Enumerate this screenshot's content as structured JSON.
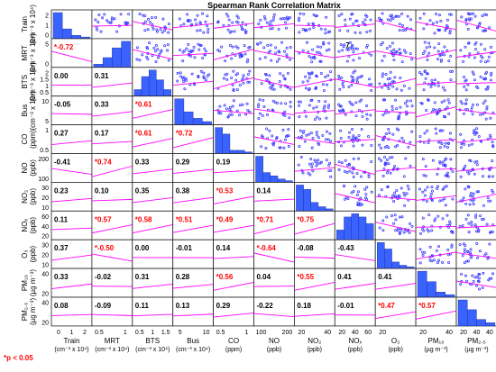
{
  "chart_data": {
    "type": "scatter-matrix",
    "title": "Spearman Rank Correlation Matrix",
    "variables": [
      {
        "name": "Train",
        "unit": "(cm⁻³ x 10⁴)"
      },
      {
        "name": "MRT",
        "unit": "(cm⁻³ x 10⁴)"
      },
      {
        "name": "BTS",
        "unit": "(cm⁻³ x 10⁴)"
      },
      {
        "name": "Bus",
        "unit": "(cm⁻³ x 10⁴)"
      },
      {
        "name": "CO",
        "unit": "(ppm)"
      },
      {
        "name": "NO",
        "unit": "(ppb)"
      },
      {
        "name": "NO₂",
        "unit": "(ppb)"
      },
      {
        "name": "NOₓ",
        "unit": "(ppb)"
      },
      {
        "name": "O₃",
        "unit": "(ppb)"
      },
      {
        "name": "PM₁₀",
        "unit": "(µg m⁻³)"
      },
      {
        "name": "PM₂.₅",
        "unit": "(µg m⁻³)"
      }
    ],
    "correlations": [
      {
        "r": 1,
        "c": 0,
        "v": "*-0.72",
        "sig": true
      },
      {
        "r": 2,
        "c": 0,
        "v": "0.00",
        "sig": false
      },
      {
        "r": 2,
        "c": 1,
        "v": "0.31",
        "sig": false
      },
      {
        "r": 3,
        "c": 0,
        "v": "-0.05",
        "sig": false
      },
      {
        "r": 3,
        "c": 1,
        "v": "0.33",
        "sig": false
      },
      {
        "r": 3,
        "c": 2,
        "v": "*0.61",
        "sig": true
      },
      {
        "r": 4,
        "c": 0,
        "v": "0.27",
        "sig": false
      },
      {
        "r": 4,
        "c": 1,
        "v": "0.17",
        "sig": false
      },
      {
        "r": 4,
        "c": 2,
        "v": "*0.61",
        "sig": true
      },
      {
        "r": 4,
        "c": 3,
        "v": "*0.72",
        "sig": true
      },
      {
        "r": 5,
        "c": 0,
        "v": "-0.41",
        "sig": false
      },
      {
        "r": 5,
        "c": 1,
        "v": "*0.74",
        "sig": true
      },
      {
        "r": 5,
        "c": 2,
        "v": "0.33",
        "sig": false
      },
      {
        "r": 5,
        "c": 3,
        "v": "0.29",
        "sig": false
      },
      {
        "r": 5,
        "c": 4,
        "v": "0.19",
        "sig": false
      },
      {
        "r": 6,
        "c": 0,
        "v": "0.23",
        "sig": false
      },
      {
        "r": 6,
        "c": 1,
        "v": "0.10",
        "sig": false
      },
      {
        "r": 6,
        "c": 2,
        "v": "0.35",
        "sig": false
      },
      {
        "r": 6,
        "c": 3,
        "v": "0.38",
        "sig": false
      },
      {
        "r": 6,
        "c": 4,
        "v": "*0.53",
        "sig": true
      },
      {
        "r": 6,
        "c": 5,
        "v": "0.14",
        "sig": false
      },
      {
        "r": 7,
        "c": 0,
        "v": "0.11",
        "sig": false
      },
      {
        "r": 7,
        "c": 1,
        "v": "*0.57",
        "sig": true
      },
      {
        "r": 7,
        "c": 2,
        "v": "*0.58",
        "sig": true
      },
      {
        "r": 7,
        "c": 3,
        "v": "*0.51",
        "sig": true
      },
      {
        "r": 7,
        "c": 4,
        "v": "*0.49",
        "sig": true
      },
      {
        "r": 7,
        "c": 5,
        "v": "*0.71",
        "sig": true
      },
      {
        "r": 7,
        "c": 6,
        "v": "*0.75",
        "sig": true
      },
      {
        "r": 8,
        "c": 0,
        "v": "0.37",
        "sig": false
      },
      {
        "r": 8,
        "c": 1,
        "v": "*-0.50",
        "sig": true
      },
      {
        "r": 8,
        "c": 2,
        "v": "0.00",
        "sig": false
      },
      {
        "r": 8,
        "c": 3,
        "v": "-0.01",
        "sig": false
      },
      {
        "r": 8,
        "c": 4,
        "v": "0.14",
        "sig": false
      },
      {
        "r": 8,
        "c": 5,
        "v": "*-0.64",
        "sig": true
      },
      {
        "r": 8,
        "c": 6,
        "v": "-0.08",
        "sig": false
      },
      {
        "r": 8,
        "c": 7,
        "v": "-0.43",
        "sig": false
      },
      {
        "r": 9,
        "c": 0,
        "v": "0.33",
        "sig": false
      },
      {
        "r": 9,
        "c": 1,
        "v": "-0.02",
        "sig": false
      },
      {
        "r": 9,
        "c": 2,
        "v": "0.31",
        "sig": false
      },
      {
        "r": 9,
        "c": 3,
        "v": "0.28",
        "sig": false
      },
      {
        "r": 9,
        "c": 4,
        "v": "*0.56",
        "sig": true
      },
      {
        "r": 9,
        "c": 5,
        "v": "0.04",
        "sig": false
      },
      {
        "r": 9,
        "c": 6,
        "v": "*0.55",
        "sig": true
      },
      {
        "r": 9,
        "c": 7,
        "v": "0.41",
        "sig": false
      },
      {
        "r": 9,
        "c": 8,
        "v": "0.41",
        "sig": false
      },
      {
        "r": 10,
        "c": 0,
        "v": "0.08",
        "sig": false
      },
      {
        "r": 10,
        "c": 1,
        "v": "-0.09",
        "sig": false
      },
      {
        "r": 10,
        "c": 2,
        "v": "0.11",
        "sig": false
      },
      {
        "r": 10,
        "c": 3,
        "v": "0.13",
        "sig": false
      },
      {
        "r": 10,
        "c": 4,
        "v": "0.29",
        "sig": false
      },
      {
        "r": 10,
        "c": 5,
        "v": "-0.22",
        "sig": false
      },
      {
        "r": 10,
        "c": 6,
        "v": "0.18",
        "sig": false
      },
      {
        "r": 10,
        "c": 7,
        "v": "-0.01",
        "sig": false
      },
      {
        "r": 10,
        "c": 8,
        "v": "*0.47",
        "sig": true
      },
      {
        "r": 10,
        "c": 9,
        "v": "*0.57",
        "sig": true
      }
    ],
    "histograms": [
      [
        8,
        3,
        1,
        0.5
      ],
      [
        1,
        3,
        6,
        8
      ],
      [
        2,
        6,
        8,
        5,
        2
      ],
      [
        8,
        4,
        2,
        1
      ],
      [
        8,
        6,
        1,
        1,
        0.5
      ],
      [
        8,
        3,
        2,
        1,
        0.5
      ],
      [
        6,
        5,
        2,
        1,
        0.5
      ],
      [
        3,
        7,
        8,
        7,
        5
      ],
      [
        8,
        6,
        2,
        1,
        0.5
      ],
      [
        5,
        3,
        1,
        0.5
      ],
      [
        8,
        5,
        2,
        1
      ]
    ],
    "x_ticks": [
      [
        "0",
        "1",
        "2"
      ],
      [],
      [],
      [],
      [],
      [],
      [
        "20",
        "40"
      ],
      [
        "20",
        "40",
        "60"
      ],
      [
        "20"
      ],
      [
        "20",
        "40"
      ],
      [
        "20",
        "40"
      ]
    ],
    "y_ticks": [
      [
        "2",
        "1",
        "0"
      ],
      [
        "5",
        "0"
      ],
      [
        "2",
        "1.5",
        "1",
        "0.5"
      ],
      [
        "10",
        "5"
      ],
      [
        "1",
        "0.5"
      ],
      [
        "200",
        "100"
      ],
      [
        "30",
        "20",
        "10"
      ],
      [
        "60",
        "40",
        "20"
      ],
      [
        "30",
        "20",
        "10"
      ],
      [
        "40",
        "20"
      ],
      [
        "40",
        "20"
      ]
    ],
    "extra_ticks": {
      "x_col0_extra": [
        "0",
        "1",
        "2"
      ],
      "x_col1": [
        "0.5",
        "1"
      ],
      "x_col2": [
        "0.5",
        "1",
        "1.5"
      ],
      "x_col3": [
        "5",
        "10"
      ],
      "x_col4": [
        "0.5",
        "1"
      ],
      "x_col5": [
        "100",
        "200"
      ],
      "x_col8": [
        "20"
      ],
      "x_col10_extra": [
        "40"
      ]
    },
    "note": "*p < 0.05",
    "mrt_mrt_annotation": "7",
    "colors": {
      "bar": "#3a62ff",
      "point": "#3a3aff",
      "line": "#ff00ff",
      "sig": "#ff0000",
      "text": "#000000"
    }
  }
}
